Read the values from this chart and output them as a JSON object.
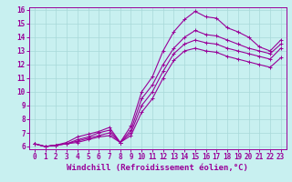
{
  "title": "",
  "xlabel": "Windchill (Refroidissement éolien,°C)",
  "background_color": "#c8f0f0",
  "line_color": "#990099",
  "xlim": [
    -0.5,
    23.5
  ],
  "ylim": [
    5.8,
    16.2
  ],
  "xticks": [
    0,
    1,
    2,
    3,
    4,
    5,
    6,
    7,
    8,
    9,
    10,
    11,
    12,
    13,
    14,
    15,
    16,
    17,
    18,
    19,
    20,
    21,
    22,
    23
  ],
  "yticks": [
    6,
    7,
    8,
    9,
    10,
    11,
    12,
    13,
    14,
    15,
    16
  ],
  "series": [
    {
      "x": [
        0,
        1,
        2,
        3,
        4,
        5,
        6,
        7,
        8,
        9,
        10,
        11,
        12,
        13,
        14,
        15,
        16,
        17,
        18,
        19,
        20,
        21,
        22,
        23
      ],
      "y": [
        6.2,
        6.0,
        6.1,
        6.3,
        6.7,
        6.9,
        7.1,
        7.4,
        6.3,
        7.5,
        10.0,
        11.1,
        13.0,
        14.4,
        15.3,
        15.9,
        15.5,
        15.4,
        14.7,
        14.4,
        14.0,
        13.3,
        13.0,
        13.8
      ]
    },
    {
      "x": [
        0,
        1,
        2,
        3,
        4,
        5,
        6,
        7,
        8,
        9,
        10,
        11,
        12,
        13,
        14,
        15,
        16,
        17,
        18,
        19,
        20,
        21,
        22,
        23
      ],
      "y": [
        6.2,
        6.0,
        6.1,
        6.2,
        6.5,
        6.7,
        7.0,
        7.2,
        6.3,
        7.2,
        9.5,
        10.5,
        12.0,
        13.2,
        14.0,
        14.5,
        14.2,
        14.1,
        13.8,
        13.5,
        13.2,
        13.0,
        12.8,
        13.5
      ]
    },
    {
      "x": [
        0,
        1,
        2,
        3,
        4,
        5,
        6,
        7,
        8,
        9,
        10,
        11,
        12,
        13,
        14,
        15,
        16,
        17,
        18,
        19,
        20,
        21,
        22,
        23
      ],
      "y": [
        6.2,
        6.0,
        6.1,
        6.2,
        6.4,
        6.6,
        6.8,
        7.0,
        6.3,
        7.0,
        9.0,
        10.0,
        11.5,
        12.8,
        13.5,
        13.8,
        13.6,
        13.5,
        13.2,
        13.0,
        12.8,
        12.6,
        12.4,
        13.2
      ]
    },
    {
      "x": [
        0,
        1,
        2,
        3,
        4,
        5,
        6,
        7,
        8,
        9,
        10,
        11,
        12,
        13,
        14,
        15,
        16,
        17,
        18,
        19,
        20,
        21,
        22,
        23
      ],
      "y": [
        6.2,
        6.0,
        6.1,
        6.2,
        6.3,
        6.5,
        6.7,
        6.8,
        6.3,
        6.8,
        8.5,
        9.5,
        11.0,
        12.3,
        13.0,
        13.2,
        13.0,
        12.9,
        12.6,
        12.4,
        12.2,
        12.0,
        11.8,
        12.5
      ]
    }
  ],
  "marker": "+",
  "markersize": 3.5,
  "linewidth": 0.8,
  "font_family": "monospace",
  "grid_color": "#a8d8d8",
  "xlabel_fontsize": 6.5,
  "tick_fontsize": 5.5
}
